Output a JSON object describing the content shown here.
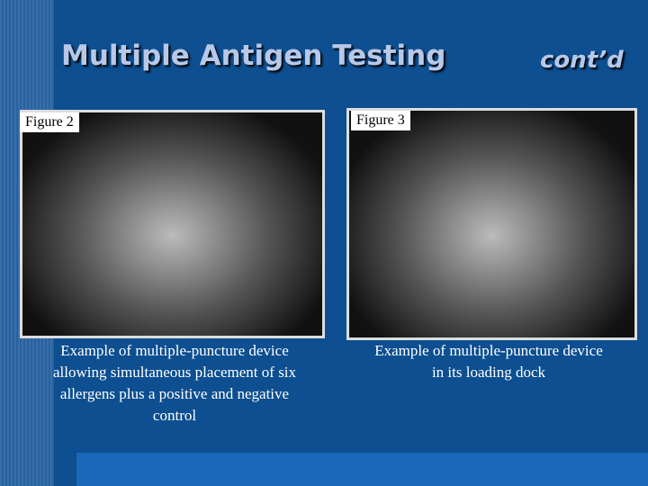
{
  "slide": {
    "title": "Multiple Antigen Testing",
    "title_suffix": "cont’d",
    "figures": [
      {
        "label": "Figure 2",
        "caption": "Example of multiple-puncture device allowing simultaneous placement of six allergens plus a positive and negative control"
      },
      {
        "label": "Figure 3",
        "caption": "Example of multiple-puncture device in its loading dock"
      }
    ]
  }
}
